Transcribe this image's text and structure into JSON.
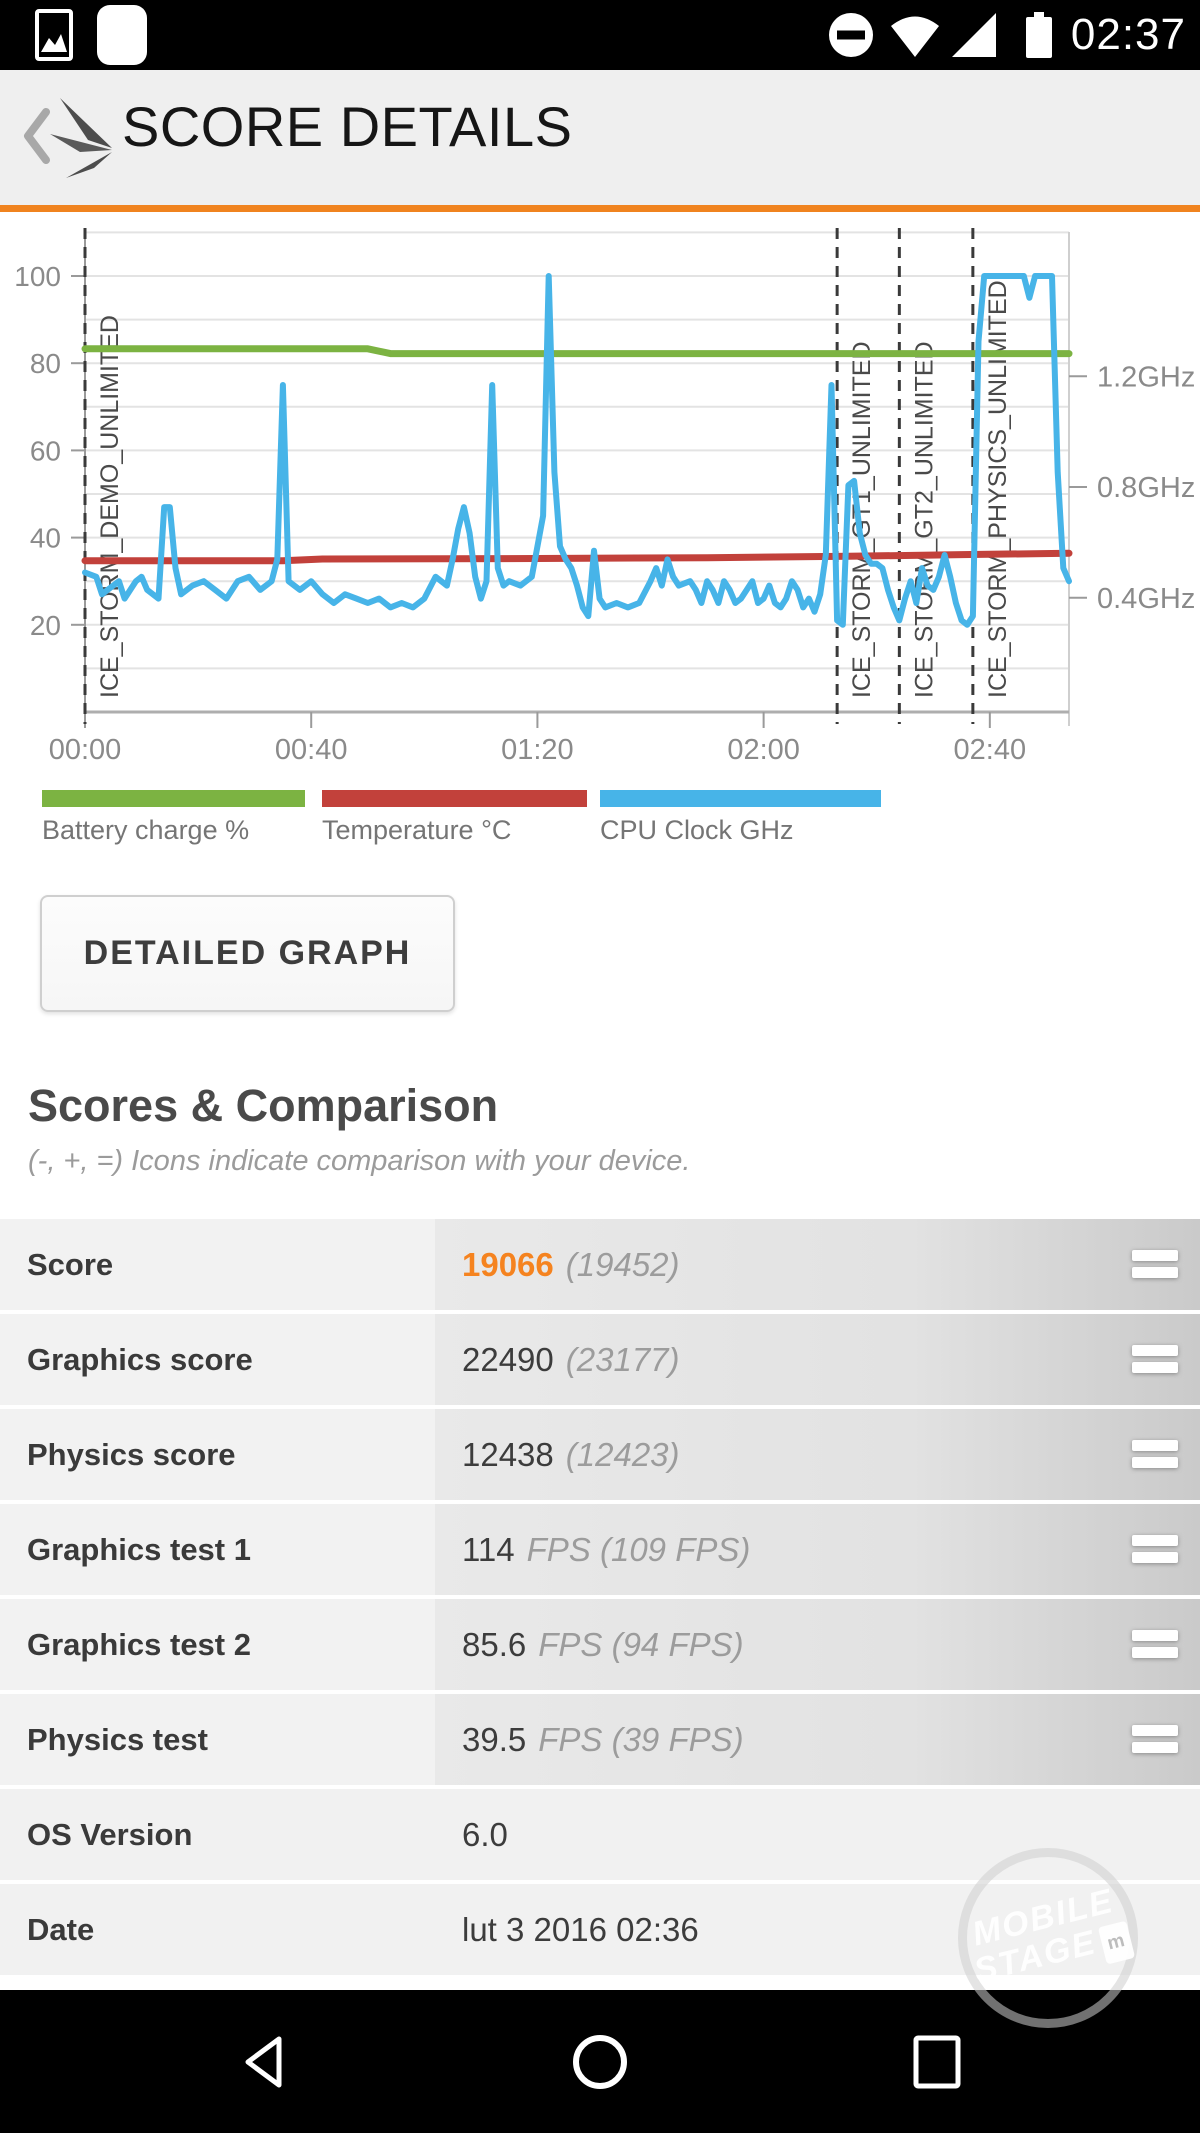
{
  "status_bar": {
    "time": "02:37",
    "icons_left": [
      "screenshot-thumbnail-icon",
      "app-icon"
    ],
    "icons_right": [
      "do-not-disturb-icon",
      "wifi-icon",
      "cellular-signal-icon",
      "battery-icon"
    ]
  },
  "header": {
    "title": "SCORE DETAILS",
    "accent_color": "#F0831F"
  },
  "chart_data": {
    "type": "line",
    "title": "",
    "xlabel": "time (mm:ss)",
    "x_range": [
      0,
      174
    ],
    "x_ticks": [
      {
        "t": 0,
        "label": "00:00"
      },
      {
        "t": 40,
        "label": "00:40"
      },
      {
        "t": 80,
        "label": "01:20"
      },
      {
        "t": 120,
        "label": "02:00"
      },
      {
        "t": 160,
        "label": "02:40"
      }
    ],
    "y_left": {
      "ticks": [
        20,
        40,
        60,
        80,
        100
      ],
      "range": [
        0,
        110
      ],
      "grid_step": 10
    },
    "y_right_labels": [
      {
        "value": 26.2,
        "label": "0.4GHz"
      },
      {
        "value": 51.6,
        "label": "0.8GHz"
      },
      {
        "value": 77.0,
        "label": "1.2GHz"
      }
    ],
    "events": [
      {
        "t": 0,
        "label": "ICE_STORM_DEMO_UNLIMITED"
      },
      {
        "t": 133,
        "label": "ICE_STORM_GT1_UNLIMITED"
      },
      {
        "t": 144,
        "label": "ICE_STORM_GT2_UNLIMITED"
      },
      {
        "t": 157,
        "label": "ICE_STORM_PHYSICS_UNLIMITED"
      }
    ],
    "series": [
      {
        "name": "Battery charge %",
        "color": "#7CB342",
        "width": 7,
        "points": [
          [
            0,
            83.3
          ],
          [
            50,
            83.3
          ],
          [
            54,
            82.2
          ],
          [
            174,
            82.2
          ]
        ]
      },
      {
        "name": "Temperature °C",
        "color": "#C2413B",
        "width": 7,
        "points": [
          [
            0,
            34.7
          ],
          [
            35,
            34.7
          ],
          [
            42,
            35.1
          ],
          [
            80,
            35.2
          ],
          [
            110,
            35.4
          ],
          [
            135,
            35.7
          ],
          [
            155,
            36.1
          ],
          [
            174,
            36.4
          ]
        ]
      },
      {
        "name": "CPU Clock GHz",
        "color": "#47B4E8",
        "width": 6,
        "points": [
          [
            0,
            32
          ],
          [
            2,
            31
          ],
          [
            3,
            27
          ],
          [
            4,
            28
          ],
          [
            6,
            30
          ],
          [
            7,
            26
          ],
          [
            9,
            30
          ],
          [
            10,
            31
          ],
          [
            11,
            28
          ],
          [
            13,
            26
          ],
          [
            14,
            47
          ],
          [
            15,
            47
          ],
          [
            16,
            33
          ],
          [
            17,
            27
          ],
          [
            19,
            29
          ],
          [
            21,
            30
          ],
          [
            23,
            28
          ],
          [
            25,
            26
          ],
          [
            27,
            30
          ],
          [
            29,
            31
          ],
          [
            31,
            28
          ],
          [
            33,
            30
          ],
          [
            34,
            35
          ],
          [
            35,
            75
          ],
          [
            36,
            30
          ],
          [
            38,
            28
          ],
          [
            40,
            30
          ],
          [
            42,
            27
          ],
          [
            44,
            25
          ],
          [
            46,
            27
          ],
          [
            48,
            26
          ],
          [
            50,
            25
          ],
          [
            52,
            26
          ],
          [
            54,
            24
          ],
          [
            56,
            25
          ],
          [
            58,
            24
          ],
          [
            60,
            26
          ],
          [
            62,
            31
          ],
          [
            64,
            29
          ],
          [
            65,
            35
          ],
          [
            66,
            42
          ],
          [
            67,
            47
          ],
          [
            68,
            41
          ],
          [
            69,
            31
          ],
          [
            70,
            26
          ],
          [
            71,
            30
          ],
          [
            72,
            75
          ],
          [
            73,
            33
          ],
          [
            74,
            29
          ],
          [
            75,
            30
          ],
          [
            77,
            29
          ],
          [
            79,
            31
          ],
          [
            81,
            45
          ],
          [
            82,
            100
          ],
          [
            83,
            55
          ],
          [
            84,
            38
          ],
          [
            85,
            35
          ],
          [
            86,
            33
          ],
          [
            87,
            29
          ],
          [
            88,
            24
          ],
          [
            89,
            22
          ],
          [
            90,
            37
          ],
          [
            91,
            26
          ],
          [
            92,
            24
          ],
          [
            94,
            25
          ],
          [
            96,
            24
          ],
          [
            98,
            25
          ],
          [
            100,
            30
          ],
          [
            101,
            33
          ],
          [
            102,
            29
          ],
          [
            103,
            35
          ],
          [
            104,
            31
          ],
          [
            105,
            29
          ],
          [
            107,
            30
          ],
          [
            108,
            28
          ],
          [
            109,
            25
          ],
          [
            110,
            30
          ],
          [
            111,
            28
          ],
          [
            112,
            25
          ],
          [
            113,
            30
          ],
          [
            114,
            28
          ],
          [
            115,
            25
          ],
          [
            116,
            26
          ],
          [
            117,
            28
          ],
          [
            118,
            30
          ],
          [
            119,
            25
          ],
          [
            120,
            26
          ],
          [
            121,
            29
          ],
          [
            122,
            25
          ],
          [
            123,
            24
          ],
          [
            124,
            26
          ],
          [
            125,
            30
          ],
          [
            126,
            28
          ],
          [
            127,
            24
          ],
          [
            128,
            26
          ],
          [
            129,
            23
          ],
          [
            130,
            27
          ],
          [
            131,
            36
          ],
          [
            132,
            75
          ],
          [
            133,
            21
          ],
          [
            134,
            20
          ],
          [
            135,
            52
          ],
          [
            136,
            53
          ],
          [
            137,
            41
          ],
          [
            138,
            36
          ],
          [
            139,
            34
          ],
          [
            140,
            34
          ],
          [
            141,
            33
          ],
          [
            142,
            28
          ],
          [
            143,
            24
          ],
          [
            144,
            21
          ],
          [
            145,
            26
          ],
          [
            146,
            30
          ],
          [
            147,
            25
          ],
          [
            148,
            33
          ],
          [
            149,
            29
          ],
          [
            150,
            28
          ],
          [
            151,
            31
          ],
          [
            152,
            36
          ],
          [
            153,
            31
          ],
          [
            154,
            25
          ],
          [
            155,
            21
          ],
          [
            156,
            20
          ],
          [
            157,
            22
          ],
          [
            158,
            85
          ],
          [
            159,
            100
          ],
          [
            161,
            100
          ],
          [
            163,
            100
          ],
          [
            165,
            100
          ],
          [
            166,
            100
          ],
          [
            167,
            95
          ],
          [
            168,
            100
          ],
          [
            170,
            100
          ],
          [
            171,
            100
          ],
          [
            172,
            55
          ],
          [
            173,
            33
          ],
          [
            174,
            30
          ]
        ]
      }
    ],
    "legend_position": "bottom",
    "grid": true
  },
  "legend": [
    {
      "label": "Battery charge %",
      "color": "#7CB342"
    },
    {
      "label": "Temperature °C",
      "color": "#C2413B"
    },
    {
      "label": "CPU Clock GHz",
      "color": "#47B4E8"
    }
  ],
  "button": {
    "label": "DETAILED GRAPH"
  },
  "section": {
    "title": "Scores & Comparison",
    "subtitle": "(-, +, =) Icons indicate comparison with your device."
  },
  "table": {
    "rows": [
      {
        "label": "Score",
        "value": "19066",
        "extra": "(19452)",
        "highlight": true,
        "icon": "equal"
      },
      {
        "label": "Graphics score",
        "value": "22490",
        "extra": "(23177)",
        "highlight": false,
        "icon": "equal"
      },
      {
        "label": "Physics score",
        "value": "12438",
        "extra": "(12423)",
        "highlight": false,
        "icon": "equal"
      },
      {
        "label": "Graphics test 1",
        "value": "114",
        "extra": "FPS (109 FPS)",
        "highlight": false,
        "icon": "equal"
      },
      {
        "label": "Graphics test 2",
        "value": "85.6",
        "extra": "FPS (94 FPS)",
        "highlight": false,
        "icon": "equal"
      },
      {
        "label": "Physics test",
        "value": "39.5",
        "extra": "FPS (39 FPS)",
        "highlight": false,
        "icon": "equal"
      },
      {
        "label": "OS Version",
        "value": "6.0",
        "extra": "",
        "highlight": false,
        "icon": null
      },
      {
        "label": "Date",
        "value": "lut 3 2016 02:36",
        "extra": "",
        "highlight": false,
        "icon": null
      }
    ]
  },
  "watermark": {
    "line1": "MOBILE",
    "line2": "STAGE",
    "badge": "m"
  },
  "navbar": {
    "icons": [
      "back-icon",
      "home-icon",
      "recents-icon"
    ]
  }
}
